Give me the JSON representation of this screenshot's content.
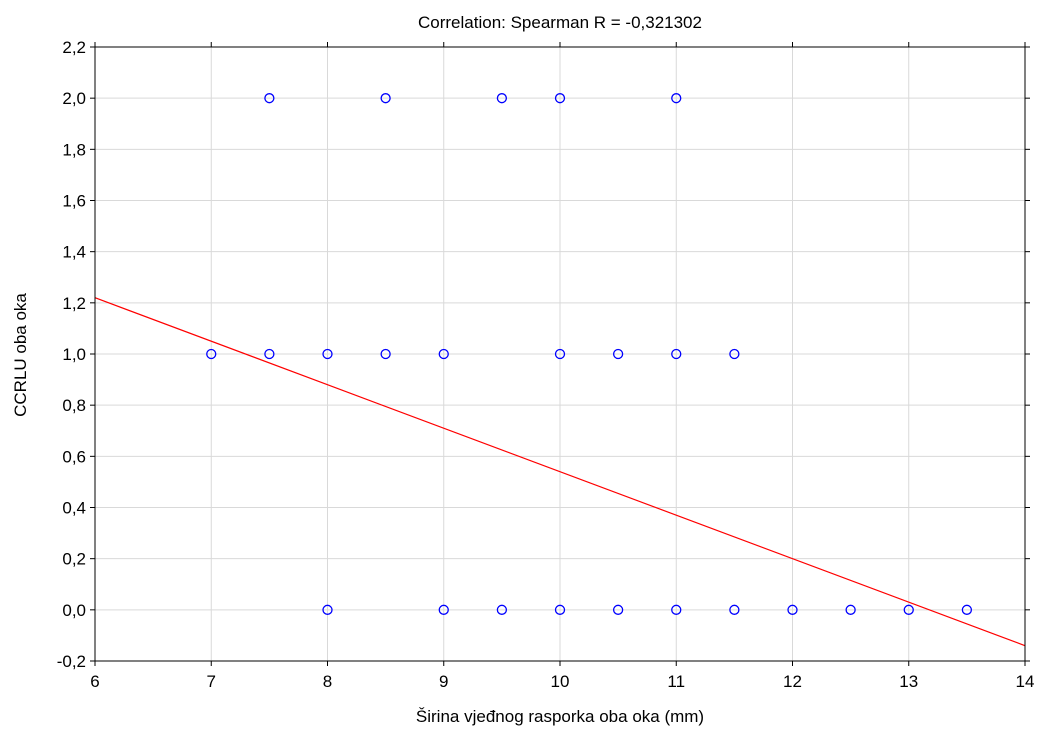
{
  "chart_data": {
    "type": "scatter",
    "title": "Correlation: Spearman R = -0,321302",
    "xlabel": "Širina vjeđnog rasporka oba oka (mm)",
    "ylabel": "CCRLU oba oka",
    "xlim": [
      6,
      14
    ],
    "ylim": [
      -0.2,
      2.2
    ],
    "x_ticks": [
      "6",
      "7",
      "8",
      "9",
      "10",
      "11",
      "12",
      "13",
      "14"
    ],
    "y_ticks": [
      "-0,2",
      "0,0",
      "0,2",
      "0,4",
      "0,6",
      "0,8",
      "1,0",
      "1,2",
      "1,4",
      "1,6",
      "1,8",
      "2,0",
      "2,2"
    ],
    "grid": true,
    "points": [
      [
        7.5,
        2.0
      ],
      [
        8.5,
        2.0
      ],
      [
        9.5,
        2.0
      ],
      [
        10.0,
        2.0
      ],
      [
        11.0,
        2.0
      ],
      [
        7.0,
        1.0
      ],
      [
        7.5,
        1.0
      ],
      [
        8.0,
        1.0
      ],
      [
        8.5,
        1.0
      ],
      [
        9.0,
        1.0
      ],
      [
        10.0,
        1.0
      ],
      [
        10.5,
        1.0
      ],
      [
        11.0,
        1.0
      ],
      [
        11.5,
        1.0
      ],
      [
        8.0,
        0.0
      ],
      [
        9.0,
        0.0
      ],
      [
        9.5,
        0.0
      ],
      [
        10.0,
        0.0
      ],
      [
        10.5,
        0.0
      ],
      [
        11.0,
        0.0
      ],
      [
        11.5,
        0.0
      ],
      [
        12.0,
        0.0
      ],
      [
        12.5,
        0.0
      ],
      [
        13.0,
        0.0
      ],
      [
        13.5,
        0.0
      ]
    ],
    "regression_line": {
      "x": [
        6,
        14
      ],
      "y": [
        1.22,
        -0.14
      ]
    },
    "colors": {
      "points": "#0000ff",
      "line": "#ff0000",
      "grid": "#d9d9d9",
      "axis": "#000000"
    }
  }
}
